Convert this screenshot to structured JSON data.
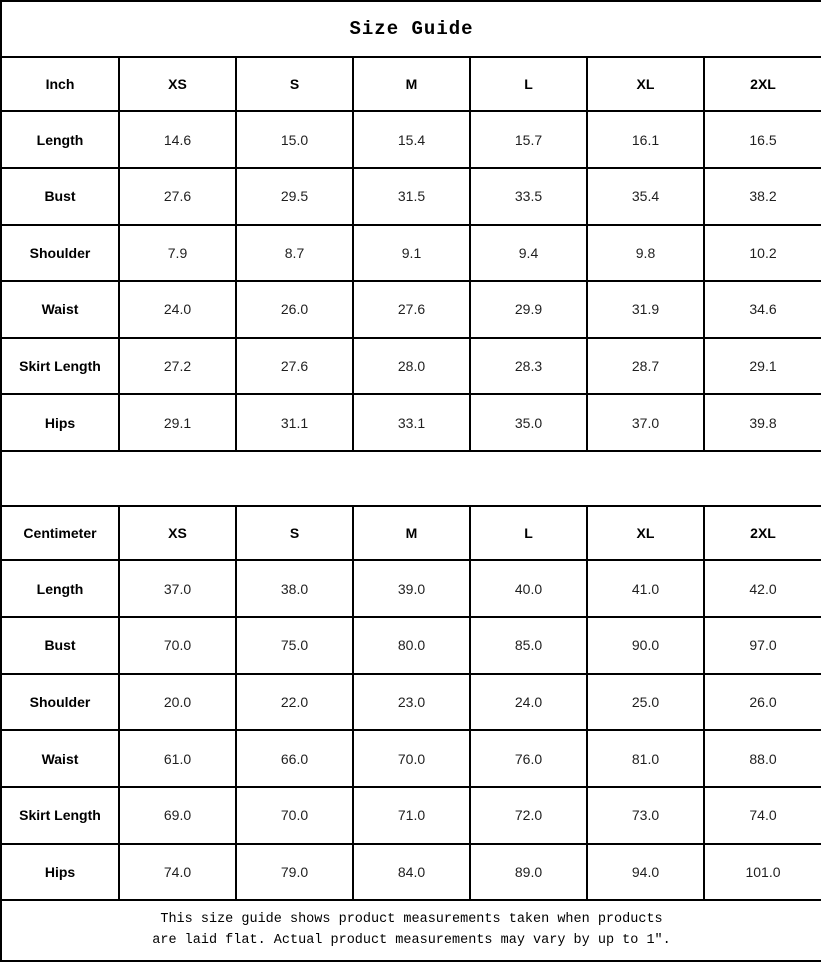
{
  "title": "Size Guide",
  "tables": [
    {
      "unit_label": "Inch",
      "sizes": [
        "XS",
        "S",
        "M",
        "L",
        "XL",
        "2XL"
      ],
      "rows": [
        {
          "label": "Length",
          "values": [
            "14.6",
            "15.0",
            "15.4",
            "15.7",
            "16.1",
            "16.5"
          ]
        },
        {
          "label": "Bust",
          "values": [
            "27.6",
            "29.5",
            "31.5",
            "33.5",
            "35.4",
            "38.2"
          ]
        },
        {
          "label": "Shoulder",
          "values": [
            "7.9",
            "8.7",
            "9.1",
            "9.4",
            "9.8",
            "10.2"
          ]
        },
        {
          "label": "Waist",
          "values": [
            "24.0",
            "26.0",
            "27.6",
            "29.9",
            "31.9",
            "34.6"
          ]
        },
        {
          "label": "Skirt Length",
          "values": [
            "27.2",
            "27.6",
            "28.0",
            "28.3",
            "28.7",
            "29.1"
          ]
        },
        {
          "label": "Hips",
          "values": [
            "29.1",
            "31.1",
            "33.1",
            "35.0",
            "37.0",
            "39.8"
          ]
        }
      ]
    },
    {
      "unit_label": "Centimeter",
      "sizes": [
        "XS",
        "S",
        "M",
        "L",
        "XL",
        "2XL"
      ],
      "rows": [
        {
          "label": "Length",
          "values": [
            "37.0",
            "38.0",
            "39.0",
            "40.0",
            "41.0",
            "42.0"
          ]
        },
        {
          "label": "Bust",
          "values": [
            "70.0",
            "75.0",
            "80.0",
            "85.0",
            "90.0",
            "97.0"
          ]
        },
        {
          "label": "Shoulder",
          "values": [
            "20.0",
            "22.0",
            "23.0",
            "24.0",
            "25.0",
            "26.0"
          ]
        },
        {
          "label": "Waist",
          "values": [
            "61.0",
            "66.0",
            "70.0",
            "76.0",
            "81.0",
            "88.0"
          ]
        },
        {
          "label": "Skirt Length",
          "values": [
            "69.0",
            "70.0",
            "71.0",
            "72.0",
            "73.0",
            "74.0"
          ]
        },
        {
          "label": "Hips",
          "values": [
            "74.0",
            "79.0",
            "84.0",
            "89.0",
            "94.0",
            "101.0"
          ]
        }
      ]
    }
  ],
  "footer_note_line1": "This size guide shows product measurements taken when products",
  "footer_note_line2": "are laid flat. Actual product measurements may vary by up to 1″.",
  "colors": {
    "border": "#000000",
    "background": "#ffffff",
    "text": "#000000"
  }
}
